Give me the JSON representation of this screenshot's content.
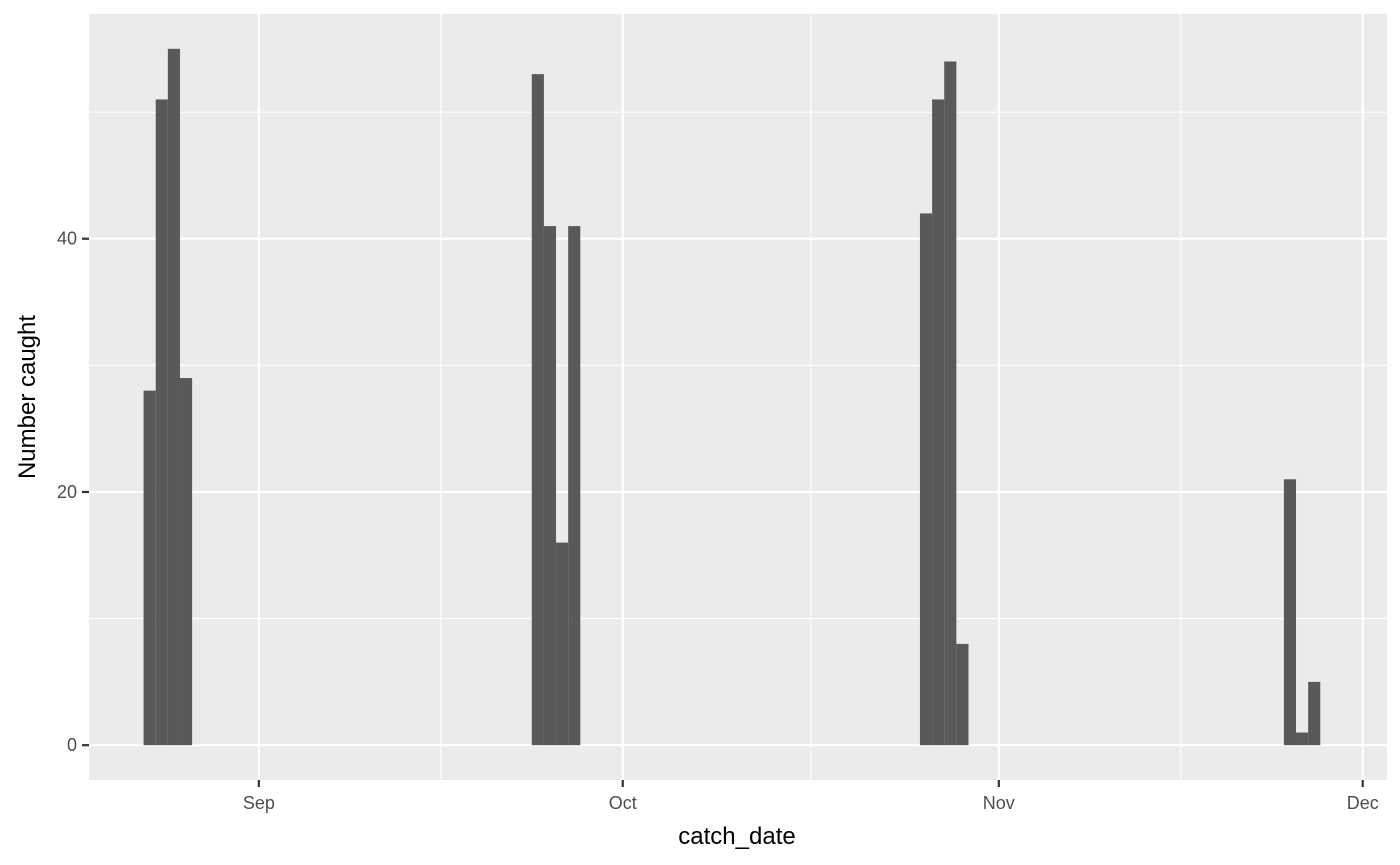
{
  "chart_data": {
    "type": "bar",
    "xlabel": "catch_date",
    "ylabel": "Number caught",
    "x_tick_labels": [
      {
        "date": "2023-09-01",
        "label": "Sep"
      },
      {
        "date": "2023-10-01",
        "label": "Oct"
      },
      {
        "date": "2023-11-01",
        "label": "Nov"
      },
      {
        "date": "2023-12-01",
        "label": "Dec"
      }
    ],
    "y_ticks": [
      0,
      20,
      40
    ],
    "y_tick_labels": [
      "0",
      "20",
      "40"
    ],
    "xlim": [
      "2023-08-18",
      "2023-12-03"
    ],
    "ylim": [
      -2.75,
      57.75
    ],
    "grid": true,
    "legend": "none",
    "panel_background": "#ebebeb",
    "bar_color": "#595959",
    "grid_color": "#ffffff",
    "bars": [
      {
        "date": "2023-08-23",
        "value": 28
      },
      {
        "date": "2023-08-24",
        "value": 51
      },
      {
        "date": "2023-08-25",
        "value": 55
      },
      {
        "date": "2023-08-26",
        "value": 29
      },
      {
        "date": "2023-09-24",
        "value": 53
      },
      {
        "date": "2023-09-25",
        "value": 41
      },
      {
        "date": "2023-09-26",
        "value": 16
      },
      {
        "date": "2023-09-27",
        "value": 41
      },
      {
        "date": "2023-10-26",
        "value": 42
      },
      {
        "date": "2023-10-27",
        "value": 51
      },
      {
        "date": "2023-10-28",
        "value": 54
      },
      {
        "date": "2023-10-29",
        "value": 8
      },
      {
        "date": "2023-11-25",
        "value": 21
      },
      {
        "date": "2023-11-26",
        "value": 1
      },
      {
        "date": "2023-11-27",
        "value": 5
      }
    ]
  }
}
